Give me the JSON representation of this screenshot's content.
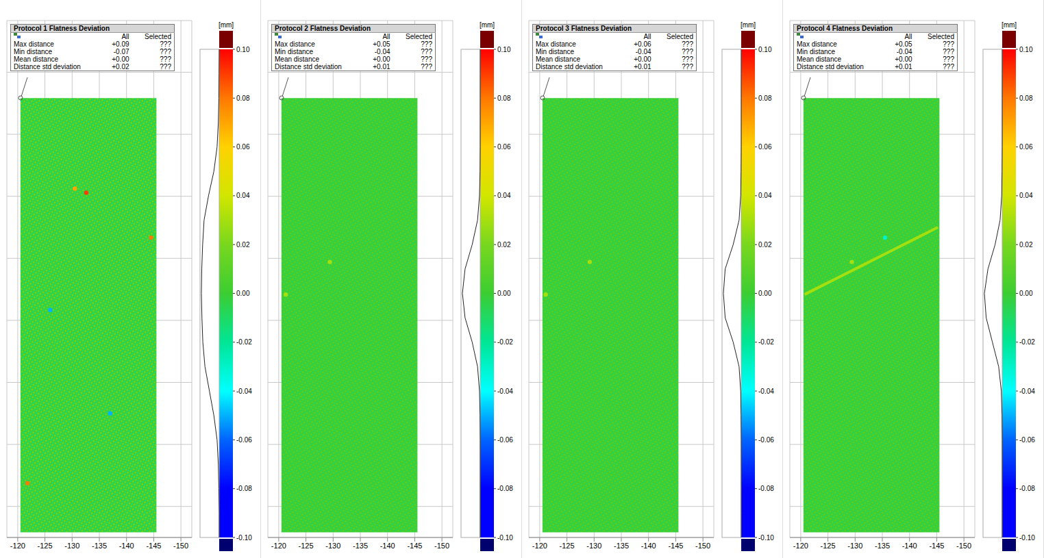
{
  "chart_data": [
    {
      "type": "heatmap",
      "title": "Protocol 1 Flatness Deviation",
      "table": {
        "columns": [
          "All",
          "Selected"
        ],
        "rows": [
          [
            "Max distance",
            "+0.09",
            "???"
          ],
          [
            "Min distance",
            "-0.07",
            "???"
          ],
          [
            "Mean distance",
            "+0.00",
            "???"
          ],
          [
            "Distance std deviation",
            "+0.02",
            "???"
          ]
        ]
      },
      "xlim": [
        -118,
        -152
      ],
      "xticks": [
        -120,
        -125,
        -130,
        -135,
        -140,
        -145,
        -150
      ],
      "ylim": [
        0,
        100
      ],
      "yticks": [
        6,
        18,
        30,
        42,
        54,
        66,
        78,
        90
      ],
      "tick_labels": "x",
      "grid": true,
      "surface": {
        "x": [
          -120.5,
          -145.5
        ],
        "y": [
          1,
          85
        ]
      },
      "features": [
        {
          "x": -132.6,
          "y": 66.7,
          "value": 0.09
        },
        {
          "x": -130.5,
          "y": 67.5,
          "value": 0.07
        },
        {
          "x": -144.5,
          "y": 58,
          "value": 0.08
        },
        {
          "x": -121.8,
          "y": 10.5,
          "value": 0.08
        },
        {
          "x": -126,
          "y": 44,
          "value": -0.05
        },
        {
          "x": -137,
          "y": 24,
          "value": -0.05
        }
      ],
      "colorbar": {
        "label": "[mm]",
        "range": [
          -0.1,
          0.1
        ],
        "ticks": [
          {
            "value": 0.1,
            "label": "0.10"
          },
          {
            "value": 0.08,
            "label": "0.08"
          },
          {
            "value": 0.06,
            "label": "0.06"
          },
          {
            "value": 0.04,
            "label": "0.04"
          },
          {
            "value": 0.02,
            "label": "0.02"
          },
          {
            "value": 0,
            "label": "0.00"
          },
          {
            "value": -0.02,
            "label": "-0.02"
          },
          {
            "value": -0.04,
            "label": "-0.04"
          },
          {
            "value": -0.06,
            "label": "-0.06"
          },
          {
            "value": -0.08,
            "label": "-0.08"
          },
          {
            "value": -0.1,
            "label": "-0.10"
          }
        ]
      },
      "histogram": {
        "levels": [
          -0.1,
          -0.09,
          -0.08,
          -0.07,
          -0.06,
          -0.05,
          -0.04,
          -0.03,
          -0.02,
          -0.01,
          0,
          0.01,
          0.02,
          0.03,
          0.04,
          0.05,
          0.06,
          0.07,
          0.08,
          0.09,
          0.1
        ],
        "counts": [
          0,
          0,
          0.02,
          0.05,
          0.12,
          0.3,
          0.55,
          0.8,
          0.92,
          0.97,
          1,
          0.98,
          0.93,
          0.85,
          0.6,
          0.3,
          0.12,
          0.05,
          0.02,
          0.01,
          0
        ]
      }
    },
    {
      "type": "heatmap",
      "title": "Protocol 2 Flatness Deviation",
      "table": {
        "columns": [
          "All",
          "Selected"
        ],
        "rows": [
          [
            "Max distance",
            "+0.05",
            "???"
          ],
          [
            "Min distance",
            "-0.04",
            "???"
          ],
          [
            "Mean distance",
            "+0.00",
            "???"
          ],
          [
            "Distance std deviation",
            "+0.01",
            "???"
          ]
        ]
      },
      "xlim": [
        -118,
        -152
      ],
      "xticks": [
        -120,
        -125,
        -130,
        -135,
        -140,
        -145,
        -150
      ],
      "ylim": [
        0,
        100
      ],
      "yticks": [
        6,
        18,
        30,
        42,
        54,
        66,
        78,
        90
      ],
      "tick_labels": "x",
      "grid": true,
      "surface": {
        "x": [
          -120.5,
          -145.5
        ],
        "y": [
          1,
          85
        ]
      },
      "features": [
        {
          "x": -129.4,
          "y": 53.3,
          "value": 0.03
        },
        {
          "x": -121.3,
          "y": 47,
          "value": 0.03
        }
      ],
      "colorbar": {
        "label": "[mm]",
        "range": [
          -0.1,
          0.1
        ],
        "ticks": [
          {
            "value": 0.1,
            "label": "0.10"
          },
          {
            "value": 0.08,
            "label": "0.08"
          },
          {
            "value": 0.06,
            "label": "0.06"
          },
          {
            "value": 0.04,
            "label": "0.04"
          },
          {
            "value": 0.02,
            "label": "0.02"
          },
          {
            "value": 0,
            "label": "0.00"
          },
          {
            "value": -0.02,
            "label": "-0.02"
          },
          {
            "value": -0.04,
            "label": "-0.04"
          },
          {
            "value": -0.06,
            "label": "-0.06"
          },
          {
            "value": -0.08,
            "label": "-0.08"
          },
          {
            "value": -0.1,
            "label": "-0.10"
          }
        ]
      },
      "histogram": {
        "levels": [
          -0.1,
          -0.09,
          -0.08,
          -0.07,
          -0.06,
          -0.05,
          -0.04,
          -0.03,
          -0.02,
          -0.01,
          0,
          0.01,
          0.02,
          0.03,
          0.04,
          0.05,
          0.06,
          0.07,
          0.08,
          0.09,
          0.1
        ],
        "counts": [
          0,
          0,
          0,
          0,
          0,
          0.01,
          0.04,
          0.15,
          0.45,
          0.85,
          1,
          0.85,
          0.45,
          0.15,
          0.04,
          0.01,
          0,
          0,
          0,
          0,
          0
        ]
      }
    },
    {
      "type": "heatmap",
      "title": "Protocol 3 Flatness Deviation",
      "table": {
        "columns": [
          "All",
          "Selected"
        ],
        "rows": [
          [
            "Max distance",
            "+0.06",
            "???"
          ],
          [
            "Min distance",
            "-0.04",
            "???"
          ],
          [
            "Mean distance",
            "+0.00",
            "???"
          ],
          [
            "Distance std deviation",
            "+0.01",
            "???"
          ]
        ]
      },
      "xlim": [
        -118,
        -152
      ],
      "xticks": [
        -120,
        -125,
        -130,
        -135,
        -140,
        -145,
        -150
      ],
      "ylim": [
        0,
        100
      ],
      "yticks": [
        6,
        18,
        30,
        42,
        54,
        66,
        78,
        90
      ],
      "tick_labels": "x",
      "grid": true,
      "surface": {
        "x": [
          -120.5,
          -145.5
        ],
        "y": [
          1,
          85
        ]
      },
      "features": [
        {
          "x": -129.2,
          "y": 53.3,
          "value": 0.03
        },
        {
          "x": -121.1,
          "y": 47,
          "value": 0.03
        }
      ],
      "colorbar": {
        "label": "[mm]",
        "range": [
          -0.1,
          0.1
        ],
        "ticks": [
          {
            "value": 0.1,
            "label": "0.10"
          },
          {
            "value": 0.08,
            "label": "0.08"
          },
          {
            "value": 0.06,
            "label": "0.06"
          },
          {
            "value": 0.04,
            "label": "0.04"
          },
          {
            "value": 0.02,
            "label": "0.02"
          },
          {
            "value": 0,
            "label": "0.00"
          },
          {
            "value": -0.02,
            "label": "-0.02"
          },
          {
            "value": -0.04,
            "label": "-0.04"
          },
          {
            "value": -0.06,
            "label": "-0.06"
          },
          {
            "value": -0.08,
            "label": "-0.08"
          },
          {
            "value": -0.1,
            "label": "-0.10"
          }
        ]
      },
      "histogram": {
        "levels": [
          -0.1,
          -0.09,
          -0.08,
          -0.07,
          -0.06,
          -0.05,
          -0.04,
          -0.03,
          -0.02,
          -0.01,
          0,
          0.01,
          0.02,
          0.03,
          0.04,
          0.05,
          0.06,
          0.07,
          0.08,
          0.09,
          0.1
        ],
        "counts": [
          0,
          0,
          0,
          0,
          0,
          0.01,
          0.03,
          0.12,
          0.45,
          0.9,
          1,
          0.9,
          0.45,
          0.12,
          0.03,
          0.01,
          0,
          0,
          0,
          0,
          0
        ]
      }
    },
    {
      "type": "heatmap",
      "title": "Protocol 4 Flatness Deviation",
      "table": {
        "columns": [
          "All",
          "Selected"
        ],
        "rows": [
          [
            "Max distance",
            "+0.05",
            "???"
          ],
          [
            "Min distance",
            "-0.04",
            "???"
          ],
          [
            "Mean distance",
            "+0.00",
            "???"
          ],
          [
            "Distance std deviation",
            "+0.01",
            "???"
          ]
        ]
      },
      "xlim": [
        -118,
        -152
      ],
      "xticks": [
        -120,
        -125,
        -130,
        -135,
        -140,
        -145,
        -150
      ],
      "ylim": [
        0,
        100
      ],
      "yticks": [
        6,
        18,
        30,
        42,
        54,
        66,
        78,
        90
      ],
      "tick_labels": "x",
      "grid": true,
      "surface": {
        "x": [
          -120.5,
          -145.5
        ],
        "y": [
          1,
          85
        ]
      },
      "features": [
        {
          "x": -129.4,
          "y": 53.3,
          "value": 0.03
        },
        {
          "x": -135.5,
          "y": 58,
          "value": -0.03
        }
      ],
      "lines": [
        {
          "x": [
            -120.7,
            -145.2
          ],
          "y": [
            47,
            60
          ],
          "value": 0.03
        }
      ],
      "colorbar": {
        "label": "[mm]",
        "range": [
          -0.1,
          0.1
        ],
        "ticks": [
          {
            "value": 0.1,
            "label": "0.10"
          },
          {
            "value": 0.08,
            "label": "0.08"
          },
          {
            "value": 0.06,
            "label": "0.06"
          },
          {
            "value": 0.04,
            "label": "0.04"
          },
          {
            "value": 0.02,
            "label": "0.02"
          },
          {
            "value": 0,
            "label": "0.00"
          },
          {
            "value": -0.02,
            "label": "-0.02"
          },
          {
            "value": -0.04,
            "label": "-0.04"
          },
          {
            "value": -0.06,
            "label": "-0.06"
          },
          {
            "value": -0.08,
            "label": "-0.08"
          },
          {
            "value": -0.1,
            "label": "-0.10"
          }
        ]
      },
      "histogram": {
        "levels": [
          -0.1,
          -0.09,
          -0.08,
          -0.07,
          -0.06,
          -0.05,
          -0.04,
          -0.03,
          -0.02,
          -0.01,
          0,
          0.01,
          0.02,
          0.03,
          0.04,
          0.05,
          0.06,
          0.07,
          0.08,
          0.09,
          0.1
        ],
        "counts": [
          0,
          0,
          0,
          0,
          0,
          0.01,
          0.05,
          0.2,
          0.55,
          0.9,
          1,
          0.8,
          0.4,
          0.12,
          0.03,
          0.01,
          0,
          0,
          0,
          0,
          0
        ]
      }
    }
  ]
}
